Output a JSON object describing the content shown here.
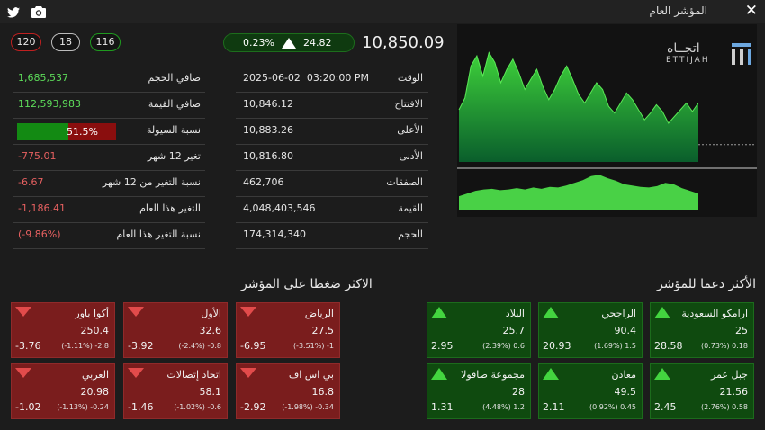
{
  "window": {
    "title": "المؤشر العام"
  },
  "counts": {
    "down": "120",
    "unchanged": "18",
    "up": "116"
  },
  "index": {
    "value": "10,850.09",
    "change_pct": "0.23%",
    "change_pts": "24.82"
  },
  "stats_left": [
    {
      "label": "الوقت",
      "value": "2025-06-02  03:20:00 PM"
    },
    {
      "label": "الافتتاح",
      "value": "10,846.12"
    },
    {
      "label": "الأعلى",
      "value": "10,883.26"
    },
    {
      "label": "الأدنى",
      "value": "10,816.80"
    },
    {
      "label": "الصفقات",
      "value": "462,706"
    },
    {
      "label": "القيمة",
      "value": "4,048,403,546"
    },
    {
      "label": "الحجم",
      "value": "174,314,340"
    }
  ],
  "stats_right": [
    {
      "label": "صافي الحجم",
      "value": "1,685,537"
    },
    {
      "label": "صافي القيمة",
      "value": "112,593,983"
    },
    {
      "label": "نسبة السيولة",
      "value": "51.5%",
      "fraction": 0.515
    },
    {
      "label": "تغير 12 شهر",
      "value": "-775.01"
    },
    {
      "label": "نسبة التغير من 12 شهر",
      "value": "-6.67"
    },
    {
      "label": "التغير هذا العام",
      "value": "-1,186.41"
    },
    {
      "label": "نسبة التغير هذا العام",
      "value": "(-9.86%)"
    }
  ],
  "logo": {
    "arabic": "اتجــاه",
    "latin": "ETTIJAH"
  },
  "colors": {
    "up": "#43d43f",
    "down": "#e24b4b",
    "card_red": "#7a1d1d",
    "card_green": "#0f4a0f"
  },
  "sections": {
    "pressure_title": "الاكثر ضغطا على المؤشر",
    "support_title": "الأكثر دعما للمؤشر"
  },
  "pressure": [
    {
      "name": "الرياض",
      "price": "27.5",
      "sub": "(-3.51%)   -1",
      "impact": "-6.95"
    },
    {
      "name": "الأول",
      "price": "32.6",
      "sub": "(-2.4%)   -0.8",
      "impact": "-3.92"
    },
    {
      "name": "أكوا باور",
      "price": "250.4",
      "sub": "(-1.11%)   -2.8",
      "impact": "-3.76"
    },
    {
      "name": "بي اس اف",
      "price": "16.8",
      "sub": "(-1.98%)   -0.34",
      "impact": "-2.92"
    },
    {
      "name": "اتحاد إتصالات",
      "price": "58.1",
      "sub": "(-1.02%)   -0.6",
      "impact": "-1.46"
    },
    {
      "name": "العربي",
      "price": "20.98",
      "sub": "(-1.13%)   -0.24",
      "impact": "-1.02"
    }
  ],
  "support": [
    {
      "name": "ارامكو السعودية",
      "price": "25",
      "sub": "(0.73%)   0.18",
      "impact": "28.58"
    },
    {
      "name": "الراجحي",
      "price": "90.4",
      "sub": "(1.69%)   1.5",
      "impact": "20.93"
    },
    {
      "name": "البلاد",
      "price": "25.7",
      "sub": "(2.39%)   0.6",
      "impact": "2.95"
    },
    {
      "name": "جبل عمر",
      "price": "21.56",
      "sub": "(2.76%)   0.58",
      "impact": "2.45"
    },
    {
      "name": "معادن",
      "price": "49.5",
      "sub": "(0.92%)   0.45",
      "impact": "2.11"
    },
    {
      "name": "مجموعة صافولا",
      "price": "28",
      "sub": "(4.48%)   1.2",
      "impact": "1.31"
    }
  ],
  "chart_data": {
    "type": "area",
    "price_series": [
      10846,
      10853,
      10872,
      10878,
      10866,
      10880,
      10874,
      10862,
      10870,
      10876,
      10868,
      10858,
      10864,
      10870,
      10860,
      10852,
      10858,
      10866,
      10872,
      10864,
      10855,
      10850,
      10856,
      10862,
      10858,
      10848,
      10844,
      10850,
      10856,
      10852,
      10846,
      10840,
      10844,
      10849,
      10845,
      10838,
      10842,
      10846,
      10850,
      10845,
      10850
    ],
    "previous_close": 10825.27,
    "volume_series": [
      20,
      24,
      28,
      30,
      31,
      29,
      30,
      32,
      30,
      33,
      31,
      34,
      33,
      36,
      40,
      44,
      50,
      52,
      47,
      43,
      38,
      36,
      34,
      33,
      35,
      40,
      38,
      32,
      28,
      24
    ],
    "grid": false
  }
}
